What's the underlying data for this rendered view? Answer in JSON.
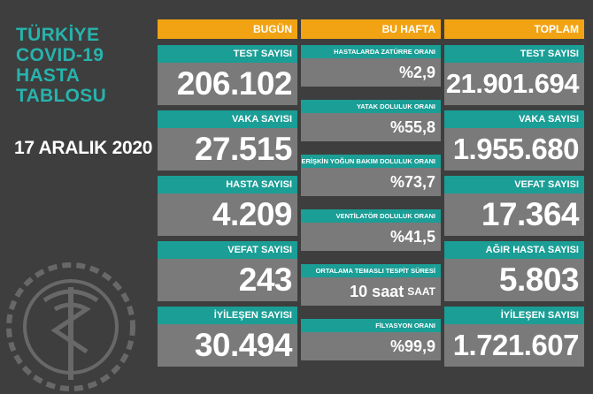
{
  "title_lines": [
    "TÜRKİYE",
    "COVID-19",
    "HASTA",
    "TABLOSU"
  ],
  "date": "17 ARALIK 2020",
  "columns": {
    "bugun": "BUGÜN",
    "bu_hafta": "BU HAFTA",
    "toplam": "TOPLAM"
  },
  "bugun": [
    {
      "label": "TEST SAYISI",
      "value": "206.102"
    },
    {
      "label": "VAKA SAYISI",
      "value": "27.515"
    },
    {
      "label": "HASTA SAYISI",
      "value": "4.209"
    },
    {
      "label": "VEFAT SAYISI",
      "value": "243"
    },
    {
      "label": "İYİLEŞEN SAYISI",
      "value": "30.494"
    }
  ],
  "bu_hafta": [
    {
      "label": "HASTALARDA ZATÜRRE ORANI",
      "value": "%2,9"
    },
    {
      "label": "YATAK DOLULUK ORANI",
      "value": "%55,8"
    },
    {
      "label": "ERİŞKİN YOĞUN BAKIM DOLULUK ORANI",
      "value": "%73,7"
    },
    {
      "label": "VENTİLATÖR DOLULUK ORANI",
      "value": "%41,5"
    },
    {
      "label": "ORTALAMA TEMASLI TESPİT SÜRESİ",
      "value": "10 saat",
      "unit": "SAAT"
    },
    {
      "label": "FİLYASYON ORANI",
      "value": "%99,9"
    }
  ],
  "toplam": [
    {
      "label": "TEST SAYISI",
      "value": "21.901.694"
    },
    {
      "label": "VAKA SAYISI",
      "value": "1.955.680"
    },
    {
      "label": "VEFAT SAYISI",
      "value": "17.364"
    },
    {
      "label": "AĞIR HASTA SAYISI",
      "value": "5.803"
    },
    {
      "label": "İYİLEŞEN SAYISI",
      "value": "1.721.607"
    }
  ],
  "colors": {
    "background": "#3e3e3e",
    "title": "#27b3ad",
    "header": "#f2a313",
    "label_bar": "#1a9e96",
    "value_box": "#7a7a7a"
  },
  "icons": [
    "ministry-emblem-icon"
  ]
}
